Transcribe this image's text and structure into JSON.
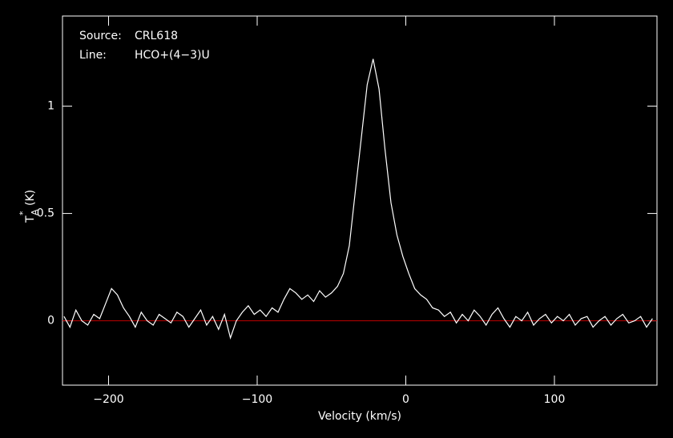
{
  "chart_data": {
    "type": "line",
    "annotations": [
      {
        "label": "Source:",
        "text": "CRL618"
      },
      {
        "label": "Line:",
        "text": "HCO+(4−3)U"
      }
    ],
    "xlabel": "Velocity (km/s)",
    "ylabel": {
      "symbol": "T",
      "sup": "*",
      "sub": "A",
      "unit": "(K)"
    },
    "xlim": [
      -231,
      169
    ],
    "ylim": [
      -0.3,
      1.42
    ],
    "xticks": [
      {
        "value": -200,
        "label": "−200"
      },
      {
        "value": -100,
        "label": "−100"
      },
      0,
      100
    ],
    "yticks": [
      0,
      0.5,
      1
    ],
    "baseline": {
      "value": 0,
      "color": "#c00000"
    },
    "series": [
      {
        "color": "#ffffff",
        "x": [
          -230,
          -226,
          -222,
          -218,
          -214,
          -210,
          -206,
          -202,
          -198,
          -194,
          -190,
          -186,
          -182,
          -178,
          -174,
          -170,
          -166,
          -162,
          -158,
          -154,
          -150,
          -146,
          -142,
          -138,
          -134,
          -130,
          -126,
          -122,
          -118,
          -114,
          -110,
          -106,
          -102,
          -98,
          -94,
          -90,
          -86,
          -82,
          -78,
          -74,
          -70,
          -66,
          -62,
          -58,
          -54,
          -50,
          -46,
          -42,
          -38,
          -34,
          -30,
          -26,
          -22,
          -18,
          -14,
          -10,
          -6,
          -2,
          2,
          6,
          10,
          14,
          18,
          22,
          26,
          30,
          34,
          38,
          42,
          46,
          50,
          54,
          58,
          62,
          66,
          70,
          74,
          78,
          82,
          86,
          90,
          94,
          98,
          102,
          106,
          110,
          114,
          118,
          122,
          126,
          130,
          134,
          138,
          142,
          146,
          150,
          154,
          158,
          162,
          166
        ],
        "values": [
          0.02,
          -0.03,
          0.05,
          0.0,
          -0.02,
          0.03,
          0.01,
          0.08,
          0.15,
          0.12,
          0.06,
          0.02,
          -0.03,
          0.04,
          0.0,
          -0.02,
          0.03,
          0.01,
          -0.01,
          0.04,
          0.02,
          -0.03,
          0.01,
          0.05,
          -0.02,
          0.02,
          -0.04,
          0.03,
          -0.08,
          0.0,
          0.04,
          0.07,
          0.03,
          0.05,
          0.02,
          0.06,
          0.04,
          0.1,
          0.15,
          0.13,
          0.1,
          0.12,
          0.09,
          0.14,
          0.11,
          0.13,
          0.16,
          0.22,
          0.35,
          0.6,
          0.85,
          1.1,
          1.22,
          1.08,
          0.8,
          0.55,
          0.4,
          0.3,
          0.22,
          0.15,
          0.12,
          0.1,
          0.06,
          0.05,
          0.02,
          0.04,
          -0.01,
          0.03,
          0.0,
          0.05,
          0.02,
          -0.02,
          0.03,
          0.06,
          0.01,
          -0.03,
          0.02,
          0.0,
          0.04,
          -0.02,
          0.01,
          0.03,
          -0.01,
          0.02,
          0.0,
          0.03,
          -0.02,
          0.01,
          0.02,
          -0.03,
          0.0,
          0.02,
          -0.02,
          0.01,
          0.03,
          -0.01,
          0.0,
          0.02,
          -0.03,
          0.01
        ]
      }
    ]
  }
}
